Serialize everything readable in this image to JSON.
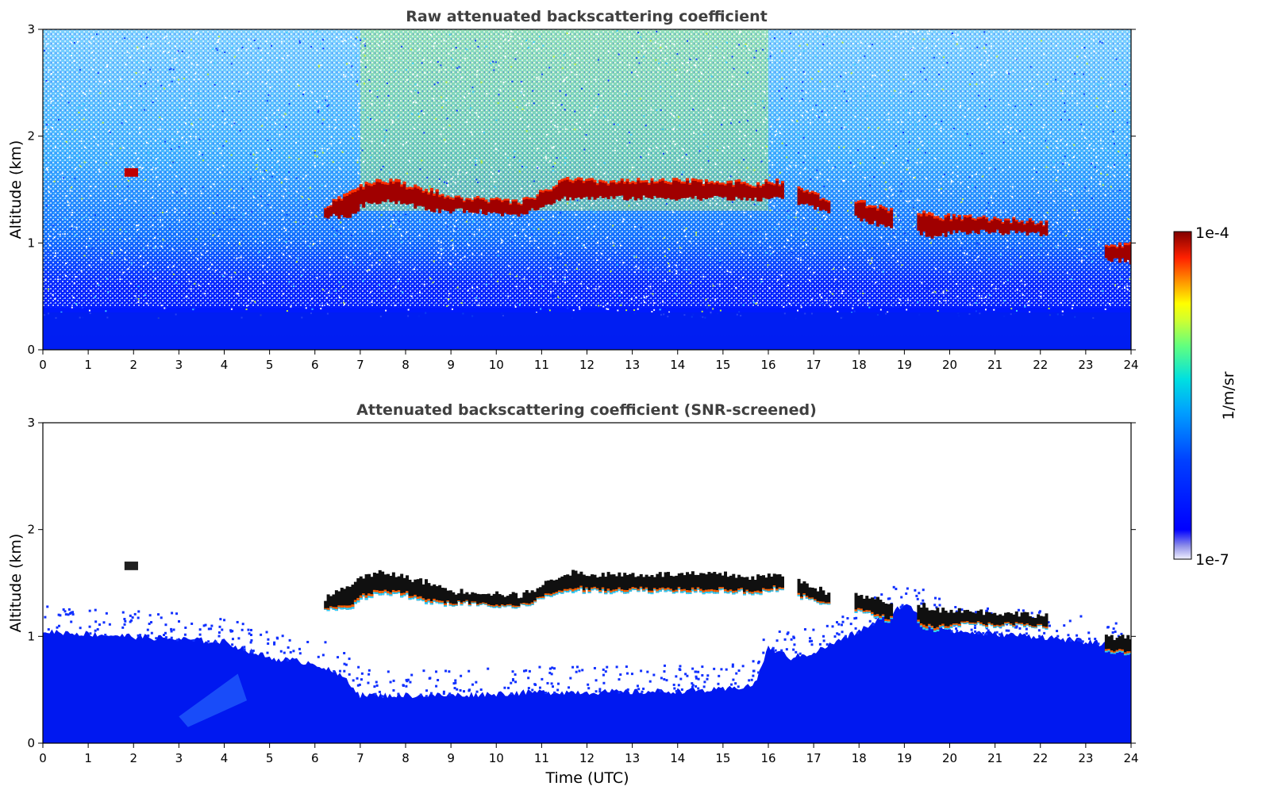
{
  "chart_data": [
    {
      "type": "heatmap",
      "title": "Raw attenuated backscattering coefficient",
      "xlabel": "",
      "ylabel": "Altitude (km)",
      "xlim": [
        0,
        24
      ],
      "ylim": [
        0,
        3
      ],
      "xticks": [
        "0",
        "1",
        "2",
        "3",
        "4",
        "5",
        "6",
        "7",
        "8",
        "9",
        "10",
        "11",
        "12",
        "13",
        "14",
        "15",
        "16",
        "17",
        "18",
        "19",
        "20",
        "21",
        "22",
        "23",
        "24"
      ],
      "yticks": [
        "0",
        "1",
        "2",
        "3"
      ],
      "noise_screened": false,
      "cloud_layer": {
        "description_x_hours": [
          6.2,
          6.8,
          7.0,
          7.5,
          8.0,
          8.5,
          9.0,
          9.5,
          10.0,
          10.5,
          11.0,
          11.5,
          12.0,
          13.0,
          14.0,
          15.0,
          15.7,
          16.1,
          16.8,
          17.3,
          18.0,
          18.6,
          19.3,
          19.7,
          20.0,
          21.0,
          22.0,
          23.5,
          24.0
        ],
        "base_km": [
          1.25,
          1.25,
          1.35,
          1.4,
          1.37,
          1.3,
          1.3,
          1.3,
          1.27,
          1.27,
          1.35,
          1.42,
          1.42,
          1.42,
          1.42,
          1.42,
          1.4,
          1.43,
          1.35,
          1.3,
          1.22,
          1.15,
          1.1,
          1.05,
          1.1,
          1.1,
          1.08,
          0.85,
          0.82
        ],
        "top_km": [
          1.35,
          1.5,
          1.55,
          1.6,
          1.55,
          1.5,
          1.42,
          1.42,
          1.4,
          1.38,
          1.48,
          1.6,
          1.58,
          1.58,
          1.58,
          1.58,
          1.55,
          1.58,
          1.5,
          1.4,
          1.38,
          1.32,
          1.3,
          1.25,
          1.25,
          1.22,
          1.2,
          1.0,
          0.98
        ]
      },
      "extra_cloud": {
        "x_hours": [
          1.8,
          2.1
        ],
        "base_km": 1.62,
        "top_km": 1.7
      }
    },
    {
      "type": "heatmap",
      "title": "Attenuated backscattering coefficient (SNR-screened)",
      "xlabel": "Time (UTC)",
      "ylabel": "Altitude (km)",
      "xlim": [
        0,
        24
      ],
      "ylim": [
        0,
        3
      ],
      "xticks": [
        "0",
        "1",
        "2",
        "3",
        "4",
        "5",
        "6",
        "7",
        "8",
        "9",
        "10",
        "11",
        "12",
        "13",
        "14",
        "15",
        "16",
        "17",
        "18",
        "19",
        "20",
        "21",
        "22",
        "23",
        "24"
      ],
      "yticks": [
        "0",
        "1",
        "2",
        "3"
      ],
      "noise_screened": true,
      "boundary_layer_top": {
        "x_hours": [
          0,
          2,
          4,
          5,
          6,
          6.7,
          7,
          9,
          11,
          13,
          15,
          15.7,
          16,
          16.5,
          17,
          17.5,
          18,
          19,
          20,
          22,
          23,
          24
        ],
        "top_km": [
          1.05,
          1.0,
          0.95,
          0.8,
          0.75,
          0.6,
          0.45,
          0.45,
          0.48,
          0.48,
          0.5,
          0.55,
          0.9,
          0.8,
          0.85,
          0.95,
          1.05,
          1.3,
          1.05,
          1.0,
          0.95,
          0.9
        ]
      }
    }
  ],
  "colorbar": {
    "label": "1/m/sr",
    "max_label": "1e-4",
    "min_label": "1e-7",
    "scale": "log",
    "colors": [
      "#e8e8f8",
      "#b0b0f0",
      "#7070f0",
      "#0000ff",
      "#0040ff",
      "#0080ff",
      "#00c0ff",
      "#00e0e0",
      "#40ff80",
      "#a0ff40",
      "#ffff00",
      "#ffa000",
      "#ff4000",
      "#e00000",
      "#800000"
    ]
  }
}
